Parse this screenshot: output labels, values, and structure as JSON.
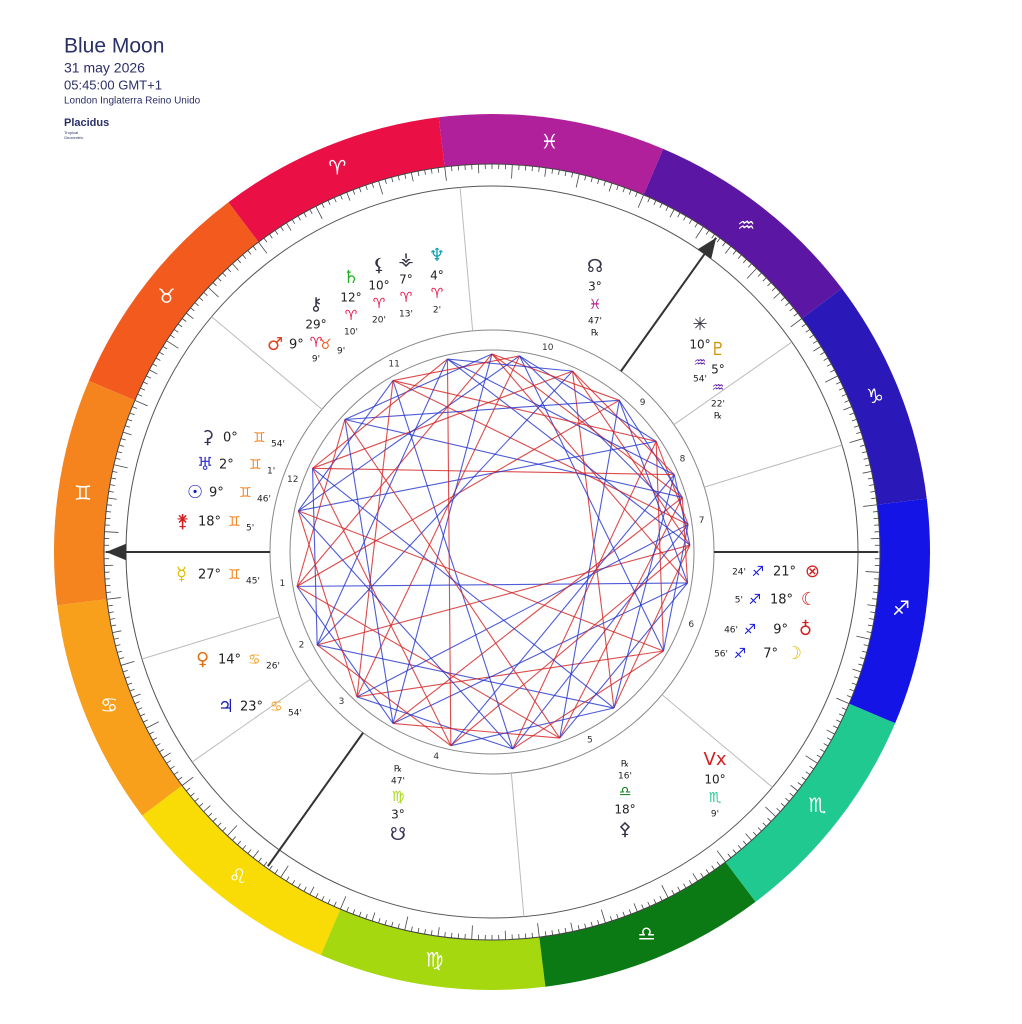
{
  "header": {
    "title": "Blue Moon",
    "date": "31 may 2026",
    "time": "05:45:00 GMT+1",
    "location": "London Inglaterra Reino Unido",
    "house_system": "Placidus",
    "zodiac": "Tropical",
    "perspective": "Geocentric"
  },
  "signs": [
    {
      "glyph": "♈",
      "color": "#ea1046"
    },
    {
      "glyph": "♉",
      "color": "#f25a1e"
    },
    {
      "glyph": "♊",
      "color": "#f5841f"
    },
    {
      "glyph": "♋",
      "color": "#f8a01b"
    },
    {
      "glyph": "♌",
      "color": "#f9dc06"
    },
    {
      "glyph": "♍",
      "color": "#a6d80f"
    },
    {
      "glyph": "♎",
      "color": "#0b7a15"
    },
    {
      "glyph": "♏",
      "color": "#1fc98f"
    },
    {
      "glyph": "♐",
      "color": "#1414e6"
    },
    {
      "glyph": "♑",
      "color": "#2a18b8"
    },
    {
      "glyph": "♒",
      "color": "#5b17a3"
    },
    {
      "glyph": "♓",
      "color": "#b0209a"
    }
  ],
  "houses": [
    "1",
    "2",
    "3",
    "4",
    "5",
    "6",
    "7",
    "8",
    "9",
    "10",
    "11",
    "12"
  ],
  "points": [
    {
      "glyph": "⚳",
      "degree": "0°",
      "sign": "♊",
      "minutes": "54'",
      "color": "#333355"
    },
    {
      "glyph": "♅",
      "degree": "2°",
      "sign": "♊",
      "minutes": "1'",
      "color": "#3a3ad0"
    },
    {
      "glyph": "☉",
      "degree": "9°",
      "sign": "♊",
      "minutes": "46'",
      "color": "#2020c0"
    },
    {
      "glyph": "⚵",
      "degree": "18°",
      "sign": "♊",
      "minutes": "5'",
      "color": "#d42020"
    },
    {
      "glyph": "☿",
      "degree": "27°",
      "sign": "♊",
      "minutes": "45'",
      "color": "#e0c000"
    },
    {
      "glyph": "♀",
      "degree": "14°",
      "sign": "♋",
      "minutes": "26'",
      "color": "#e07010"
    },
    {
      "glyph": "♃",
      "degree": "23°",
      "sign": "♋",
      "minutes": "54'",
      "color": "#2020b0"
    },
    {
      "glyph": "♂",
      "degree": "9°",
      "sign": "♉",
      "minutes": "9'",
      "color": "#e04020"
    },
    {
      "glyph": "⚷",
      "degree": "29°",
      "sign": "♈",
      "minutes": "9'",
      "color": "#333344"
    },
    {
      "glyph": "♄",
      "degree": "12°",
      "sign": "♈",
      "minutes": "10'",
      "color": "#20b020"
    },
    {
      "glyph": "⚸",
      "degree": "10°",
      "sign": "♈",
      "minutes": "20'",
      "color": "#333344"
    },
    {
      "glyph": "⚶",
      "degree": "7°",
      "sign": "♈",
      "minutes": "13'",
      "color": "#333344"
    },
    {
      "glyph": "♆",
      "degree": "4°",
      "sign": "♈",
      "minutes": "2'",
      "color": "#10a0b0"
    },
    {
      "glyph": "☊",
      "degree": "3°",
      "sign": "♓",
      "minutes": "47'",
      "retro": "℞",
      "color": "#333344"
    },
    {
      "glyph": "✳",
      "degree": "10°",
      "sign": "♒",
      "minutes": "54'",
      "color": "#333344"
    },
    {
      "glyph": "♇",
      "degree": "5°",
      "sign": "♒",
      "minutes": "22'",
      "retro": "℞",
      "color": "#d09000"
    },
    {
      "glyph": "⊗",
      "degree": "21°",
      "sign": "♐",
      "minutes": "24'",
      "color": "#d42020"
    },
    {
      "glyph": "☾",
      "degree": "18°",
      "sign": "♐",
      "minutes": "5'",
      "color": "#d42020"
    },
    {
      "glyph": "♁",
      "degree": "9°",
      "sign": "♐",
      "minutes": "46'",
      "color": "#d42020"
    },
    {
      "glyph": "☽",
      "degree": "7°",
      "sign": "♐",
      "minutes": "56'",
      "color": "#e0c000"
    },
    {
      "glyph": "Vx",
      "degree": "10°",
      "sign": "♏",
      "minutes": "9'",
      "color": "#d42020"
    },
    {
      "glyph": "⚴",
      "degree": "18°",
      "sign": "♎",
      "minutes": "16'",
      "retro": "℞",
      "color": "#333344"
    },
    {
      "glyph": "☋",
      "degree": "3°",
      "sign": "♍",
      "minutes": "47'",
      "retro": "℞",
      "color": "#333355"
    }
  ]
}
